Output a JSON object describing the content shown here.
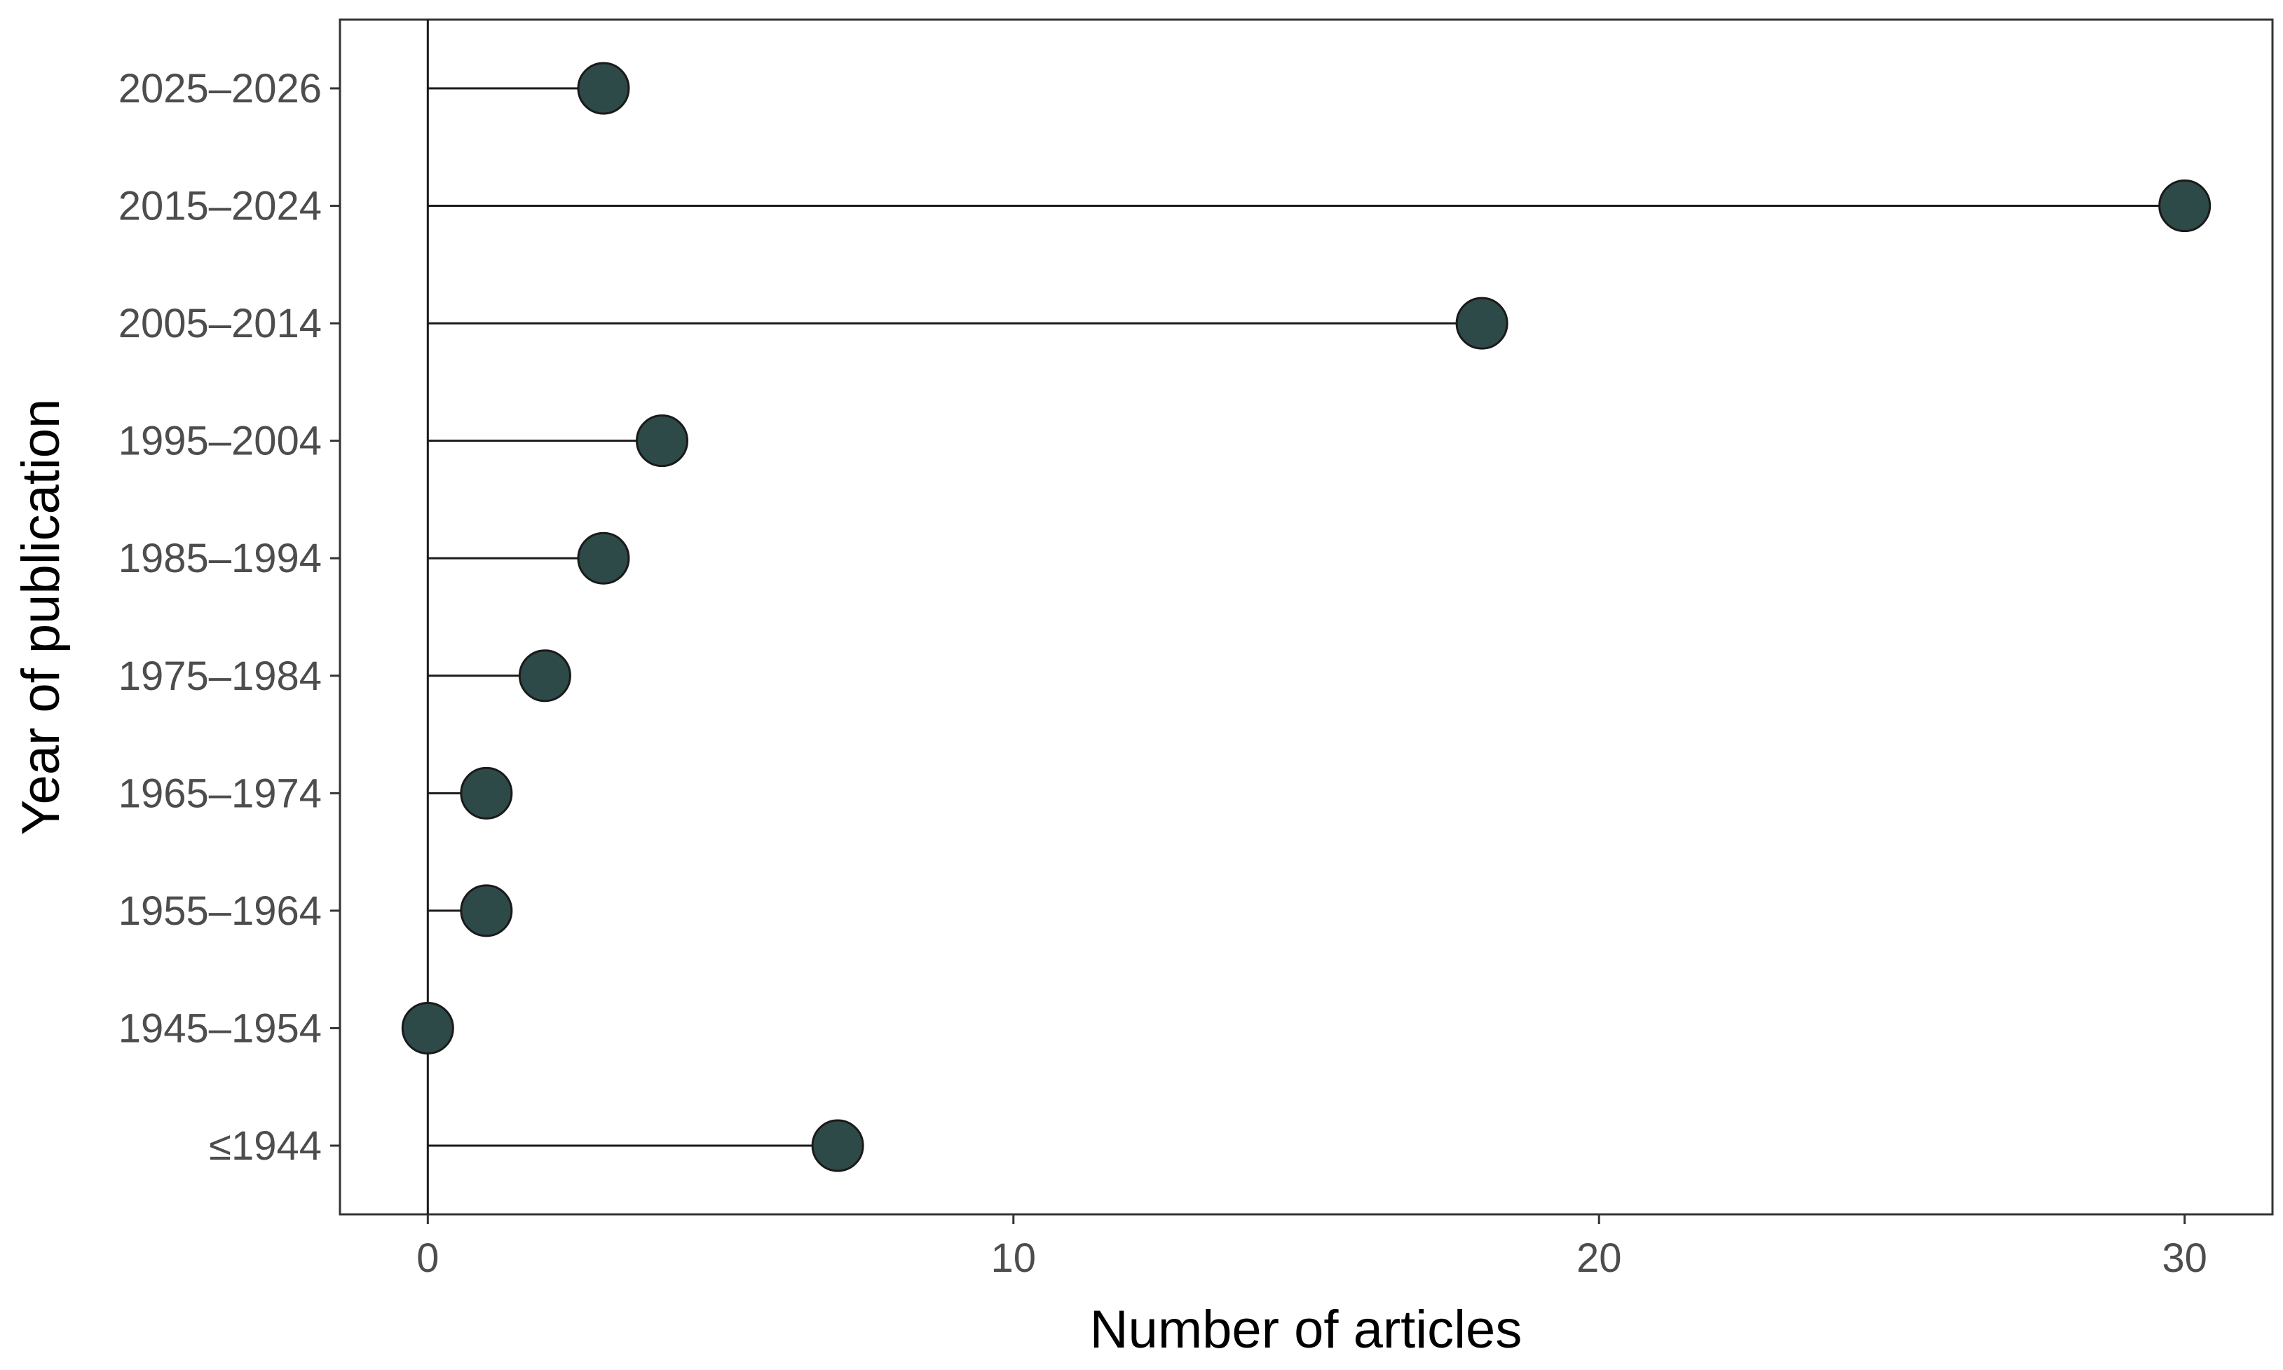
{
  "chart_data": {
    "type": "lollipop",
    "categories": [
      "≤1944",
      "1945–1954",
      "1955–1964",
      "1965–1974",
      "1975–1984",
      "1985–1994",
      "1995–2004",
      "2005–2014",
      "2015–2024",
      "2025–2026"
    ],
    "values": [
      7,
      0,
      1,
      1,
      2,
      3,
      4,
      18,
      30,
      3
    ],
    "xlabel": "Number of articles",
    "ylabel": "Year of publication",
    "xlim": [
      -1.5,
      31.5
    ],
    "xticks": [
      0,
      10,
      20,
      30
    ],
    "reference_line_x": 0,
    "grid": false,
    "legend": "none"
  },
  "colors": {
    "point_fill": "#2e4a48",
    "point_stroke": "#1a1a1a",
    "segment": "#1a1a1a",
    "tick_text": "#4d4d4d",
    "axis_title": "#000000",
    "panel_border": "#333333"
  }
}
